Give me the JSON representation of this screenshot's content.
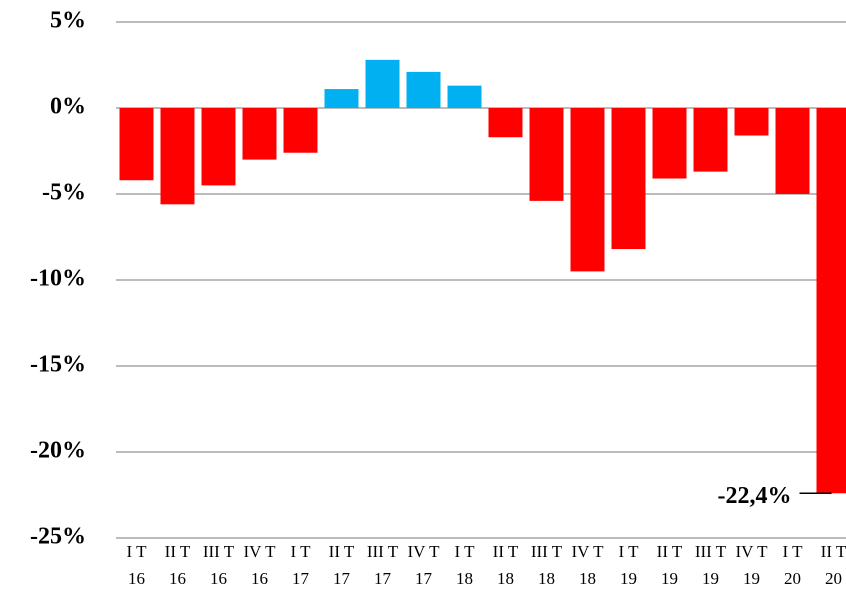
{
  "chart_data": {
    "type": "bar",
    "categories": [
      [
        "I T",
        "16"
      ],
      [
        "II T",
        "16"
      ],
      [
        "III T",
        "16"
      ],
      [
        "IV T",
        "16"
      ],
      [
        "I T",
        "17"
      ],
      [
        "II T",
        "17"
      ],
      [
        "III T",
        "17"
      ],
      [
        "IV T",
        "17"
      ],
      [
        "I T",
        "18"
      ],
      [
        "II T",
        "18"
      ],
      [
        "III T",
        "18"
      ],
      [
        "IV T",
        "18"
      ],
      [
        "I T",
        "19"
      ],
      [
        "II T",
        "19"
      ],
      [
        "III T",
        "19"
      ],
      [
        "IV T",
        "19"
      ],
      [
        "I T",
        "20"
      ],
      [
        "II T",
        "20"
      ]
    ],
    "values": [
      -4.2,
      -5.6,
      -4.5,
      -3.0,
      -2.6,
      1.1,
      2.8,
      2.1,
      1.3,
      -1.7,
      -5.4,
      -9.5,
      -8.2,
      -4.1,
      -3.7,
      -1.6,
      -5.0,
      -22.4
    ],
    "value_labels": [
      null,
      null,
      null,
      null,
      null,
      null,
      null,
      null,
      null,
      null,
      null,
      null,
      null,
      null,
      null,
      null,
      null,
      "-22,4%"
    ],
    "colors": [
      "#ff0000",
      "#ff0000",
      "#ff0000",
      "#ff0000",
      "#ff0000",
      "#00b0f0",
      "#00b0f0",
      "#00b0f0",
      "#00b0f0",
      "#ff0000",
      "#ff0000",
      "#ff0000",
      "#ff0000",
      "#ff0000",
      "#ff0000",
      "#ff0000",
      "#ff0000",
      "#ff0000"
    ],
    "ylim": [
      -25,
      5
    ],
    "yticks": [
      {
        "value": -25,
        "label": "-25%"
      },
      {
        "value": -20,
        "label": "-20%"
      },
      {
        "value": -15,
        "label": "-15%"
      },
      {
        "value": -10,
        "label": "-10%"
      },
      {
        "value": -5,
        "label": "-5%"
      },
      {
        "value": 0,
        "label": "0%"
      },
      {
        "value": 5,
        "label": "5%"
      }
    ],
    "grid": true
  }
}
